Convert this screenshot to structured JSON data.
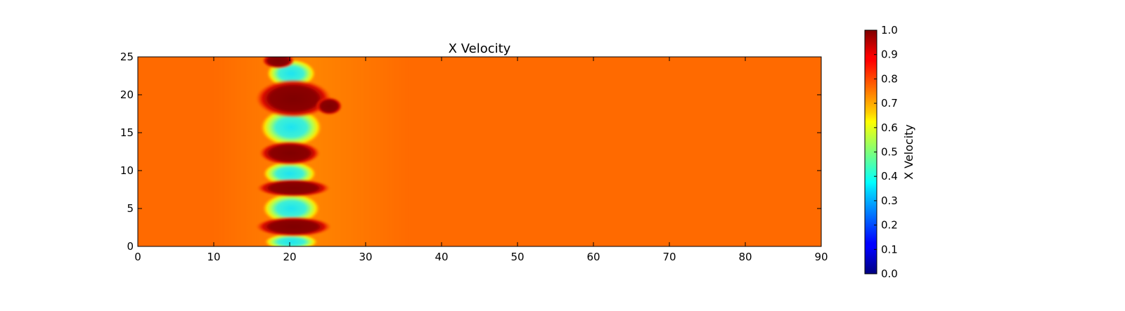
{
  "chart_data": {
    "type": "heatmap",
    "title": "X Velocity",
    "xlabel": "",
    "ylabel": "",
    "xlim": [
      0,
      90
    ],
    "ylim": [
      0,
      25
    ],
    "x_ticks": [
      "0",
      "10",
      "20",
      "30",
      "40",
      "50",
      "60",
      "70",
      "80",
      "90"
    ],
    "y_ticks": [
      "0",
      "5",
      "10",
      "15",
      "20",
      "25"
    ],
    "colormap": "jet",
    "background_value": 0.77,
    "colorbar": {
      "label": "X Velocity",
      "range": [
        0.0,
        1.0
      ],
      "ticks": [
        "0.0",
        "0.1",
        "0.2",
        "0.3",
        "0.4",
        "0.5",
        "0.6",
        "0.7",
        "0.8",
        "0.9",
        "1.0"
      ]
    },
    "features": [
      {
        "kind": "high",
        "x": 18.5,
        "y": 24.5,
        "rx": 1.6,
        "ry": 0.8,
        "value": 1.0
      },
      {
        "kind": "low",
        "x": 20.2,
        "y": 22.8,
        "rx": 2.4,
        "ry": 1.4,
        "value": 0.38
      },
      {
        "kind": "high",
        "x": 20.5,
        "y": 19.5,
        "rx": 3.7,
        "ry": 1.9,
        "value": 1.0
      },
      {
        "kind": "high",
        "x": 25.2,
        "y": 18.5,
        "rx": 1.3,
        "ry": 0.9,
        "value": 0.95
      },
      {
        "kind": "low",
        "x": 20.2,
        "y": 15.7,
        "rx": 3.0,
        "ry": 1.9,
        "value": 0.35
      },
      {
        "kind": "high",
        "x": 20.0,
        "y": 12.3,
        "rx": 3.0,
        "ry": 1.2,
        "value": 1.0
      },
      {
        "kind": "low",
        "x": 20.0,
        "y": 9.6,
        "rx": 2.6,
        "ry": 1.2,
        "value": 0.38
      },
      {
        "kind": "high",
        "x": 20.5,
        "y": 7.7,
        "rx": 3.6,
        "ry": 0.9,
        "value": 1.0
      },
      {
        "kind": "low",
        "x": 20.2,
        "y": 5.0,
        "rx": 2.8,
        "ry": 1.5,
        "value": 0.38
      },
      {
        "kind": "high",
        "x": 20.5,
        "y": 2.6,
        "rx": 3.7,
        "ry": 1.0,
        "value": 1.0
      },
      {
        "kind": "low",
        "x": 20.2,
        "y": 0.6,
        "rx": 2.6,
        "ry": 0.8,
        "value": 0.38
      }
    ]
  }
}
